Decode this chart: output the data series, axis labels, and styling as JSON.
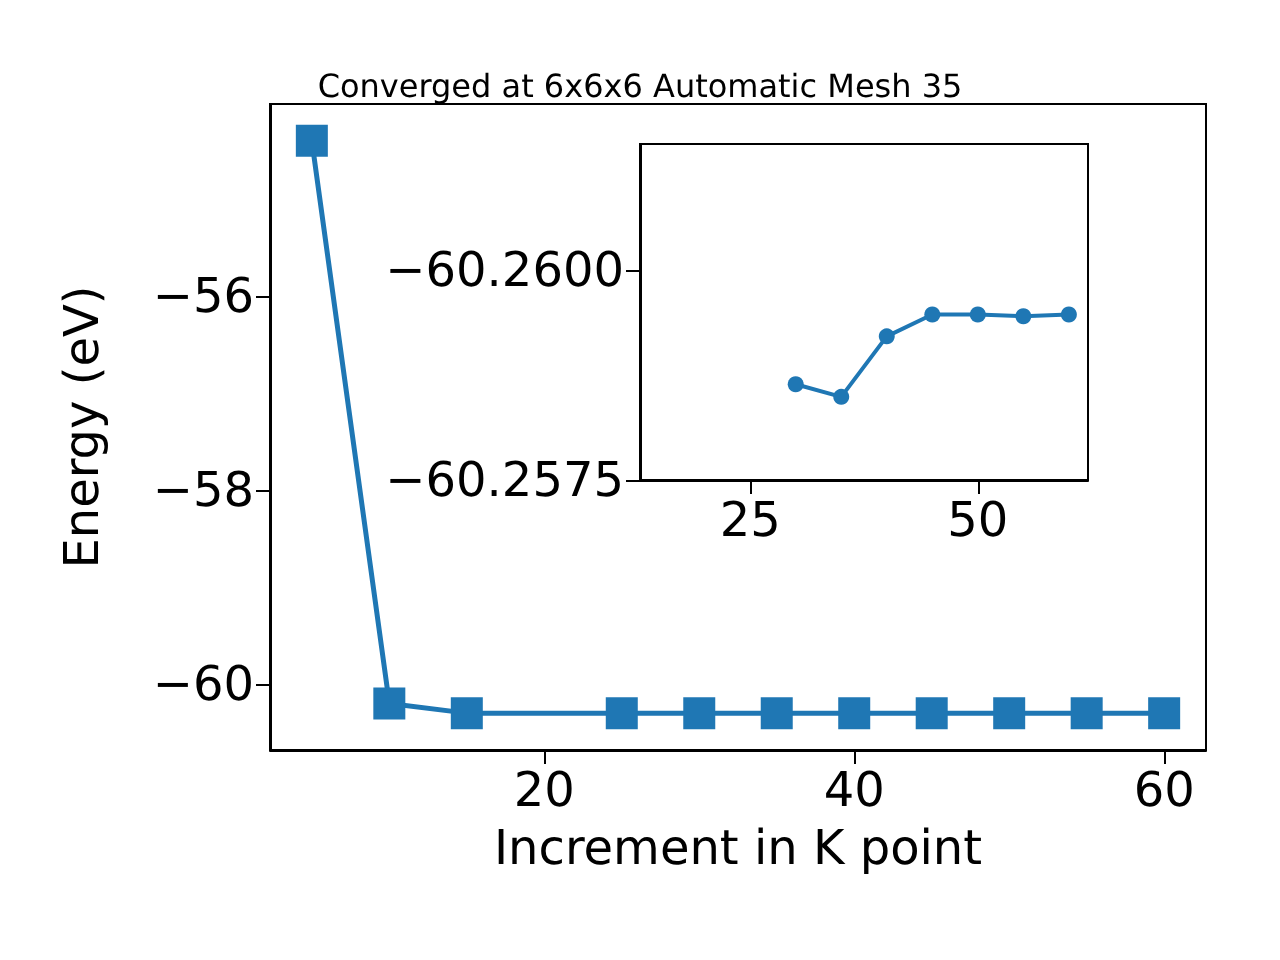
{
  "chart_data": [
    {
      "type": "line",
      "title": "Converged at 6x6x6 Automatic Mesh 35",
      "xlabel": "Increment in K point",
      "ylabel": "Energy (eV)",
      "marker": "square",
      "xlim": [
        2.3,
        62.7
      ],
      "ylim": [
        -60.68,
        -54.02
      ],
      "xticks": [
        20,
        40,
        60
      ],
      "yticks": [
        {
          "value": -56,
          "label": "−56"
        },
        {
          "value": -58,
          "label": "−58"
        },
        {
          "value": -60,
          "label": "−60"
        }
      ],
      "series": [
        {
          "color": "#1f77b4",
          "x": [
            5,
            10,
            15,
            25,
            30,
            35,
            40,
            45,
            50,
            55,
            60
          ],
          "values": [
            -54.4,
            -60.2,
            -60.3,
            -60.3,
            -60.3,
            -60.3,
            -60.3,
            -60.3,
            -60.3,
            -60.3,
            -60.3
          ]
        }
      ]
    },
    {
      "type": "line",
      "marker": "circle",
      "xlim": [
        12.9,
        62.1
      ],
      "ylim": [
        -60.2575,
        -60.2615
      ],
      "xticks": [
        25,
        50
      ],
      "yticks": [
        {
          "value": -60.26,
          "label": "−60.2600"
        },
        {
          "value": -60.2575,
          "label": "−60.2575"
        }
      ],
      "series": [
        {
          "color": "#1f77b4",
          "x": [
            30,
            35,
            40,
            45,
            50,
            55,
            60
          ],
          "values": [
            -60.25864,
            -60.25849,
            -60.25921,
            -60.25947,
            -60.25947,
            -60.25945,
            -60.25947
          ]
        }
      ]
    }
  ]
}
